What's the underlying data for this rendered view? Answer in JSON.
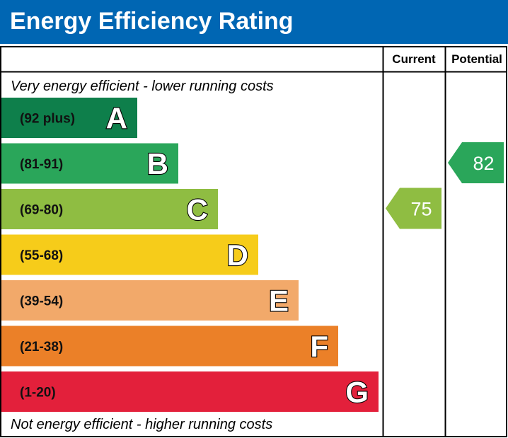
{
  "header": {
    "title": "Energy Efficiency Rating",
    "bg_color": "#0066b3"
  },
  "chart_data": {
    "type": "bar",
    "title": "Energy Efficiency Rating",
    "top_note": "Very energy efficient - lower running costs",
    "bottom_note": "Not energy efficient - higher running costs",
    "columns": [
      "Current",
      "Potential"
    ],
    "bands": [
      {
        "letter": "A",
        "range": "(92 plus)",
        "min": 92,
        "max": 100,
        "color": "#0e7f4b"
      },
      {
        "letter": "B",
        "range": "(81-91)",
        "min": 81,
        "max": 91,
        "color": "#2aa65a"
      },
      {
        "letter": "C",
        "range": "(69-80)",
        "min": 69,
        "max": 80,
        "color": "#8fbd42"
      },
      {
        "letter": "D",
        "range": "(55-68)",
        "min": 55,
        "max": 68,
        "color": "#f6cc1a"
      },
      {
        "letter": "E",
        "range": "(39-54)",
        "min": 39,
        "max": 54,
        "color": "#f2a96a"
      },
      {
        "letter": "F",
        "range": "(21-38)",
        "min": 21,
        "max": 38,
        "color": "#eb8028"
      },
      {
        "letter": "G",
        "range": "(1-20)",
        "min": 1,
        "max": 20,
        "color": "#e3203b"
      }
    ],
    "ratings": [
      {
        "column": "Current",
        "value": 75,
        "band": "C",
        "color": "#8fbd42"
      },
      {
        "column": "Potential",
        "value": 82,
        "band": "B",
        "color": "#2aa65a"
      }
    ]
  }
}
